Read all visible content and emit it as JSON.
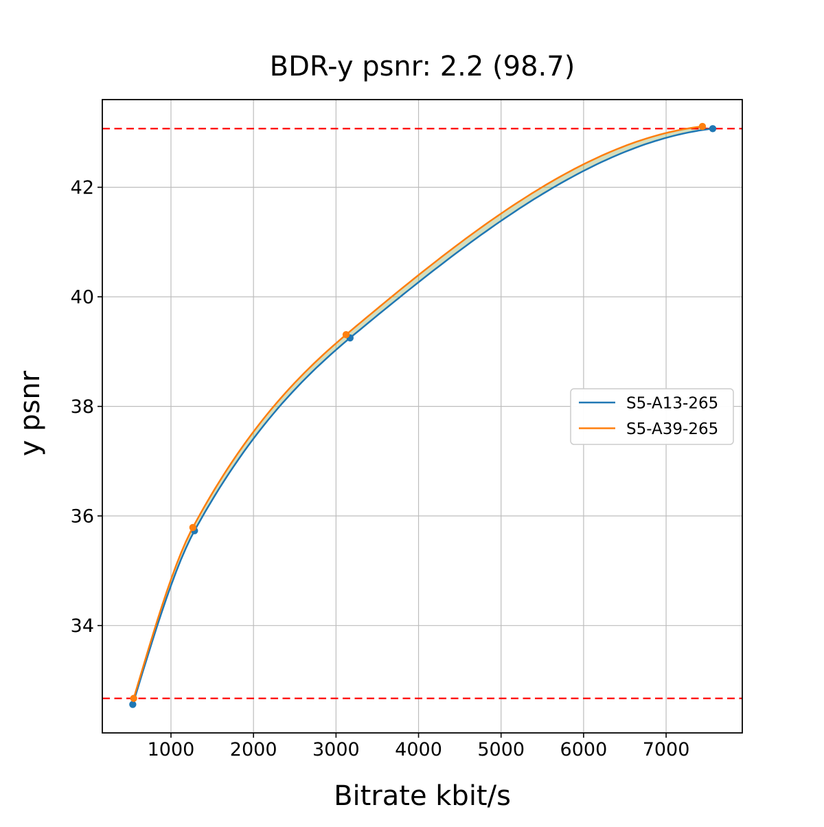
{
  "title": "BDR-y psnr: 2.2 (98.7)",
  "chart_data": {
    "type": "line",
    "title": "BDR-y psnr: 2.2 (98.7)",
    "xlabel": "Bitrate kbit/s",
    "ylabel": "y psnr",
    "xlim": [
      168,
      7923
    ],
    "ylim": [
      32.04,
      43.6
    ],
    "xticks": [
      1000,
      2000,
      3000,
      4000,
      5000,
      6000,
      7000
    ],
    "yticks": [
      34,
      36,
      38,
      40,
      42
    ],
    "grid": true,
    "grid_color": "#bdbdbd",
    "background": "#ffffff",
    "series": [
      {
        "name": "S5-A13-265",
        "color": "#1f77b4",
        "x": [
          537,
          1285,
          3170,
          7565
        ],
        "y": [
          32.56,
          35.73,
          39.25,
          43.07
        ]
      },
      {
        "name": "S5-A39-265",
        "color": "#ff7f0e",
        "x": [
          548,
          1265,
          3122,
          7440
        ],
        "y": [
          32.67,
          35.79,
          39.31,
          43.11
        ]
      }
    ],
    "fill_between": {
      "between": [
        "S5-A13-265",
        "S5-A39-265"
      ],
      "color": "rgba(110,145,40,0.30)"
    },
    "hlines": [
      {
        "y": 43.07,
        "color": "#ff0000",
        "style": "dashed"
      },
      {
        "y": 32.67,
        "color": "#ff0000",
        "style": "dashed"
      }
    ],
    "legend": {
      "position": "center right",
      "entries": [
        "S5-A13-265",
        "S5-A39-265"
      ]
    }
  }
}
